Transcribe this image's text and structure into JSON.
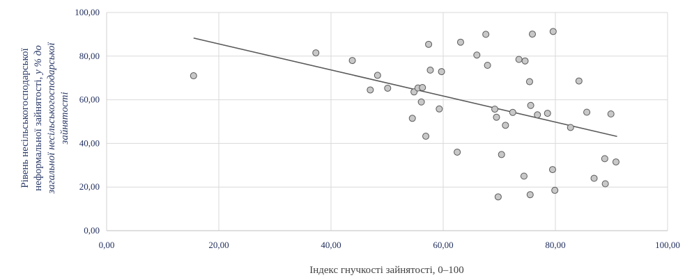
{
  "chart_data": {
    "type": "scatter",
    "xlabel": "Індекс гнучкості зайнятості, 0–100",
    "ylabel_parts": [
      {
        "text": "Рівень несільськогосподарської"
      },
      {
        "text": "неформальної зайнятості, ",
        "italic_tail": "у % до"
      },
      {
        "text": "загальної несільськогосподарської",
        "italic": true
      },
      {
        "text": "зайнятості",
        "italic": true
      }
    ],
    "xlim": [
      0,
      100
    ],
    "ylim": [
      0,
      100
    ],
    "x_ticks": [
      0,
      20,
      40,
      60,
      80,
      100
    ],
    "y_ticks": [
      0,
      20,
      40,
      60,
      80,
      100
    ],
    "x_tick_labels": [
      "0,00",
      "20,00",
      "40,00",
      "60,00",
      "80,00",
      "100,00"
    ],
    "y_tick_labels": [
      "0,00",
      "20,00",
      "40,00",
      "60,00",
      "80,00",
      "100,00"
    ],
    "grid": true,
    "colors": {
      "point_fill": "#c8c8c8",
      "point_stroke": "#595959",
      "trend": "#595959",
      "grid": "#d9d9d9",
      "tick_text": "#1f2d5c"
    },
    "points": [
      [
        15.5,
        71
      ],
      [
        37.3,
        81.5
      ],
      [
        43.8,
        78
      ],
      [
        47,
        64.5
      ],
      [
        48.3,
        71.2
      ],
      [
        50.1,
        65.3
      ],
      [
        54.5,
        51.5
      ],
      [
        54.8,
        63.6
      ],
      [
        55.5,
        65.4
      ],
      [
        56.1,
        59
      ],
      [
        56.3,
        65.6
      ],
      [
        56.9,
        43.3
      ],
      [
        57.4,
        85.4
      ],
      [
        57.7,
        73.6
      ],
      [
        59.3,
        55.8
      ],
      [
        59.7,
        72.9
      ],
      [
        62.5,
        36
      ],
      [
        63.1,
        86.4
      ],
      [
        66,
        80.5
      ],
      [
        67.6,
        90
      ],
      [
        67.9,
        75.8
      ],
      [
        69.2,
        55.7
      ],
      [
        69.5,
        52
      ],
      [
        69.8,
        15.5
      ],
      [
        70.4,
        34.9
      ],
      [
        71.1,
        48.3
      ],
      [
        72.4,
        54.2
      ],
      [
        73.5,
        78.5
      ],
      [
        74.4,
        25
      ],
      [
        74.6,
        77.8
      ],
      [
        75.4,
        68.3
      ],
      [
        75.5,
        16.5
      ],
      [
        75.6,
        57.4
      ],
      [
        75.9,
        90.1
      ],
      [
        76.8,
        53.1
      ],
      [
        78.6,
        53.8
      ],
      [
        79.5,
        28
      ],
      [
        79.6,
        91.3
      ],
      [
        79.9,
        18.5
      ],
      [
        82.7,
        47.3
      ],
      [
        84.2,
        68.6
      ],
      [
        85.6,
        54.3
      ],
      [
        86.9,
        24
      ],
      [
        88.8,
        33
      ],
      [
        88.9,
        21.5
      ],
      [
        89.9,
        53.5
      ],
      [
        90.8,
        31.5
      ]
    ],
    "trendline": {
      "type": "linear",
      "x": [
        15.5,
        91
      ],
      "y": [
        88.3,
        43.2
      ]
    }
  }
}
